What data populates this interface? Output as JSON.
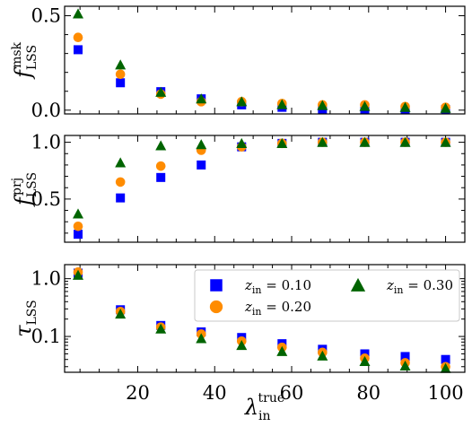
{
  "chart_data": [
    {
      "type": "scatter",
      "ylabel": "f_LSS^msk",
      "ylabel_main": "f",
      "ylabel_sub": "LSS",
      "ylabel_sup": "msk",
      "ylim": [
        -0.02,
        0.55
      ],
      "yticks": [
        0.0,
        0.5
      ],
      "ytick_labels": [
        "0.0",
        "0.5"
      ],
      "x": [
        4.5,
        15.5,
        26,
        36.5,
        47,
        57.5,
        68,
        79,
        89.5,
        100
      ],
      "series": [
        {
          "key": "z010",
          "color": "#0000ff",
          "marker": "square",
          "values": [
            0.32,
            0.145,
            0.098,
            0.06,
            0.028,
            0.015,
            0.006,
            0.004,
            0.003,
            0.003
          ]
        },
        {
          "key": "z020",
          "color": "#ff8c00",
          "marker": "circle",
          "values": [
            0.385,
            0.19,
            0.085,
            0.045,
            0.045,
            0.035,
            0.028,
            0.028,
            0.019,
            0.015
          ]
        },
        {
          "key": "z030",
          "color": "#006400",
          "marker": "triangle",
          "values": [
            0.51,
            0.24,
            0.095,
            0.06,
            0.045,
            0.03,
            0.025,
            0.02,
            0.015,
            0.01
          ]
        }
      ]
    },
    {
      "type": "scatter",
      "ylabel": "f_LSS^prj",
      "ylabel_main": "f",
      "ylabel_sub": "LSS",
      "ylabel_sup": "prj",
      "ylim": [
        0.12,
        1.06
      ],
      "yticks": [
        0.5,
        1.0
      ],
      "ytick_labels": [
        "0.5",
        "1.0"
      ],
      "x": [
        4.5,
        15.5,
        26,
        36.5,
        47,
        57.5,
        68,
        79,
        89.5,
        100
      ],
      "series": [
        {
          "key": "z010",
          "color": "#0000ff",
          "marker": "square",
          "values": [
            0.19,
            0.51,
            0.69,
            0.8,
            0.96,
            0.99,
            1.0,
            1.0,
            1.0,
            1.0
          ]
        },
        {
          "key": "z020",
          "color": "#ff8c00",
          "marker": "circle",
          "values": [
            0.26,
            0.65,
            0.79,
            0.93,
            0.96,
            0.99,
            1.0,
            1.0,
            1.0,
            1.0
          ]
        },
        {
          "key": "z030",
          "color": "#006400",
          "marker": "triangle",
          "values": [
            0.37,
            0.82,
            0.97,
            0.98,
            0.99,
            0.99,
            1.0,
            1.0,
            1.0,
            1.0
          ]
        }
      ]
    },
    {
      "type": "scatter",
      "yscale": "log",
      "ylabel": "τ_LSS",
      "ylabel_main": "τ",
      "ylabel_sub": "LSS",
      "ylim": [
        0.024,
        1.75
      ],
      "yticks": [
        0.1,
        1.0
      ],
      "ytick_labels": [
        "0.1",
        "1.0"
      ],
      "xlim": [
        1,
        105
      ],
      "xticks": [
        20,
        40,
        60,
        80,
        100
      ],
      "xtick_labels": [
        "20",
        "40",
        "60",
        "80",
        "100"
      ],
      "xlabel_main": "λ",
      "xlabel_sub": "in",
      "xlabel_sup": "true",
      "legend": {
        "placement": "top-right",
        "entries": [
          {
            "series": "z010",
            "label_main": "z",
            "label_sub": "in",
            "label_value": " = 0.10"
          },
          {
            "series": "z020",
            "label_main": "z",
            "label_sub": "in",
            "label_value": " = 0.20"
          },
          {
            "series": "z030",
            "label_main": "z",
            "label_sub": "in",
            "label_value": " = 0.30"
          }
        ]
      },
      "x": [
        4.5,
        15.5,
        26,
        36.5,
        47,
        57.5,
        68,
        79,
        89.5,
        100
      ],
      "series": [
        {
          "key": "z010",
          "color": "#0000ff",
          "marker": "square",
          "values": [
            1.25,
            0.29,
            0.155,
            0.12,
            0.096,
            0.075,
            0.06,
            0.05,
            0.045,
            0.04
          ]
        },
        {
          "key": "z020",
          "color": "#ff8c00",
          "marker": "circle",
          "values": [
            1.3,
            0.27,
            0.145,
            0.11,
            0.083,
            0.065,
            0.053,
            0.042,
            0.035,
            0.03
          ]
        },
        {
          "key": "z030",
          "color": "#006400",
          "marker": "triangle",
          "values": [
            1.15,
            0.245,
            0.135,
            0.092,
            0.07,
            0.055,
            0.046,
            0.037,
            0.031,
            0.028
          ]
        }
      ]
    }
  ]
}
